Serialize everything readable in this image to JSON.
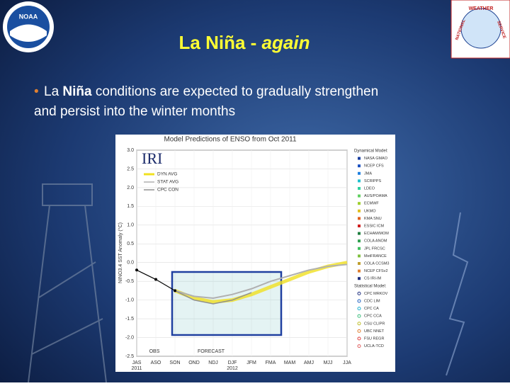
{
  "slide": {
    "title_main": "La Niña - ",
    "title_italic": "again",
    "bullet": [
      "La ",
      "Niña",
      " conditions are expected to gradually strengthen and persist into the winter months"
    ],
    "logo_left": "NOAA",
    "logo_right": [
      "NATIONAL",
      "WEATHER",
      "SERVICE"
    ]
  },
  "chart_data": {
    "type": "line",
    "title": "Model Predictions of ENSO from Oct 2011",
    "badge": "IRI",
    "y_label": "NINO3.4 SST Anomaly (°C)",
    "categories": [
      "JAS",
      "ASO",
      "SON",
      "OND",
      "NDJ",
      "DJF",
      "JFM",
      "FMA",
      "MAM",
      "AMJ",
      "MJJ",
      "JJA"
    ],
    "year_labels": [
      {
        "index": 0,
        "label": "2011"
      },
      {
        "index": 5,
        "label": "2012"
      }
    ],
    "annotations": [
      "FORECAST"
    ],
    "ylim": [
      -2.5,
      3.0
    ],
    "yticks": [
      {
        "value": 3,
        "label": "3.0"
      },
      2.5,
      {
        "value": 2,
        "label": "2.0"
      },
      1.5,
      {
        "value": 1,
        "label": "1.0"
      },
      0.5,
      {
        "value": 0,
        "label": "0.0"
      },
      -0.5,
      {
        "value": -1,
        "label": "-1.0"
      },
      -1.5,
      {
        "value": -2,
        "label": "-2.0"
      },
      -2.5
    ],
    "grid": true,
    "series": [
      {
        "name": "DYN AVG",
        "color": "#f0e020",
        "values": [
          null,
          null,
          -0.75,
          -0.95,
          -1.05,
          -1.0,
          -0.85,
          -0.65,
          -0.45,
          -0.25,
          -0.1,
          0.0
        ]
      },
      {
        "name": "STAT AVG",
        "color": "#b0b0b0",
        "values": [
          null,
          null,
          -0.75,
          -0.9,
          -0.95,
          -0.85,
          -0.7,
          -0.5,
          -0.35,
          -0.2,
          -0.1,
          -0.05
        ]
      },
      {
        "name": "CPC CON",
        "color": "#909090",
        "values": [
          null,
          null,
          -0.75,
          -1.0,
          -1.1,
          -1.0,
          -0.8,
          null,
          null,
          null,
          null,
          null
        ]
      },
      {
        "name": "OBS",
        "color": "#000000",
        "values": [
          -0.2,
          -0.45,
          -0.75,
          null,
          null,
          null,
          null,
          null,
          null,
          null,
          null,
          null
        ]
      }
    ],
    "legend_groups": [
      {
        "title": "Dynamical Model:",
        "items": [
          {
            "name": "NASA GMAO",
            "color": "#1a3fa0"
          },
          {
            "name": "NCEP CFS",
            "color": "#1a50c0"
          },
          {
            "name": "JMA",
            "color": "#2080e0"
          },
          {
            "name": "SCRIPPS",
            "color": "#20c0d0"
          },
          {
            "name": "LDEO",
            "color": "#30d0a0"
          },
          {
            "name": "AUS/POAMA",
            "color": "#60d060"
          },
          {
            "name": "ECMWF",
            "color": "#a0d030"
          },
          {
            "name": "UKMO",
            "color": "#e0c020"
          },
          {
            "name": "KMA SNU",
            "color": "#e06020"
          },
          {
            "name": "ESSIC ICM",
            "color": "#d02020"
          },
          {
            "name": "ECHAM/MOM",
            "color": "#208040"
          },
          {
            "name": "COLA ANOM",
            "color": "#30a050"
          },
          {
            "name": "JPL FRCSC",
            "color": "#40c060"
          },
          {
            "name": "MetFRANCE",
            "color": "#80c040"
          },
          {
            "name": "COLA CCSM3",
            "color": "#c0a030"
          },
          {
            "name": "NCEP CFSv2",
            "color": "#e08030"
          },
          {
            "name": "CS IRI-IM",
            "color": "#203080"
          }
        ]
      },
      {
        "title": "Statistical Model:",
        "items": [
          {
            "name": "CPC MRKOV",
            "color": "#203080"
          },
          {
            "name": "CDC LIM",
            "color": "#2060c0"
          },
          {
            "name": "CPC CA",
            "color": "#20b0d0"
          },
          {
            "name": "CPC CCA",
            "color": "#40c080"
          },
          {
            "name": "CSU CLIPR",
            "color": "#c0c030"
          },
          {
            "name": "UBC NNET",
            "color": "#e08030"
          },
          {
            "name": "FSU REGR",
            "color": "#e04040"
          },
          {
            "name": "UCLA-TCD",
            "color": "#e06060"
          }
        ]
      }
    ]
  }
}
